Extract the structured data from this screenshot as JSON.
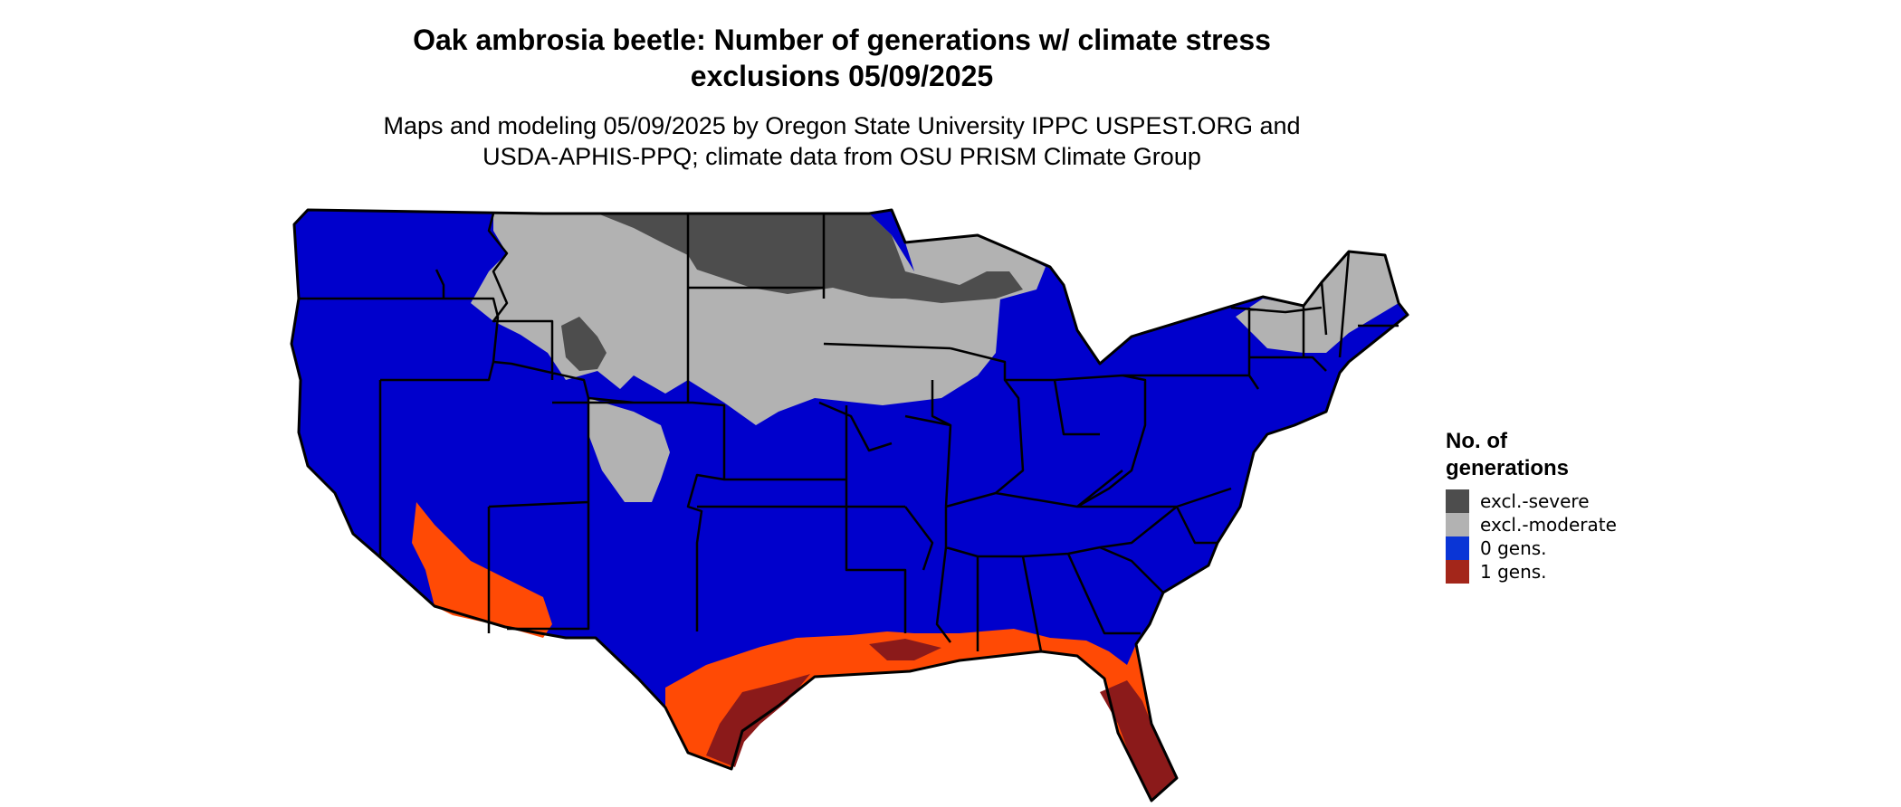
{
  "title": {
    "line1": "Oak ambrosia beetle: Number of generations w/ climate stress",
    "line2": "exclusions 05/09/2025"
  },
  "subtitle": {
    "line1": "Maps and modeling 05/09/2025 by Oregon State University IPPC USPEST.ORG and",
    "line2": "USDA-APHIS-PPQ; climate data from OSU PRISM Climate Group"
  },
  "legend": {
    "title_line1": "No. of",
    "title_line2": "generations",
    "items": [
      {
        "label": "excl.-severe",
        "color": "#4d4d4d"
      },
      {
        "label": "excl.-moderate",
        "color": "#b2b2b2"
      },
      {
        "label": "0 gens.",
        "color": "#0a35d6"
      },
      {
        "label": "1 gens.",
        "color": "#a3261a"
      }
    ]
  },
  "map_colors": {
    "zero_gens": "#0000cc",
    "one_gen_light": "#ff4a05",
    "one_gen_dark": "#8b1a1a",
    "excl_moderate": "#b2b2b2",
    "excl_severe": "#4d4d4d",
    "border": "#000000"
  }
}
